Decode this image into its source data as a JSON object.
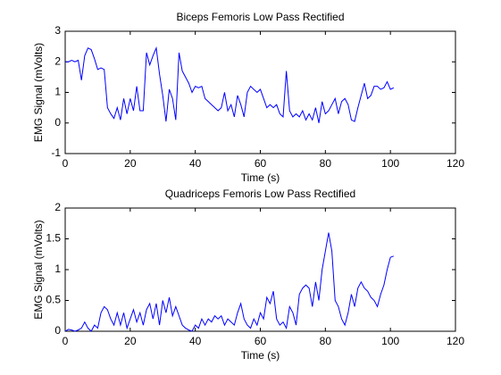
{
  "chart_data": [
    {
      "type": "line",
      "title": "Biceps Femoris Low Pass Rectified",
      "xlabel": "Time (s)",
      "ylabel": "EMG Signal (mVolts)",
      "color": "#0000ff",
      "x": [
        0,
        1,
        2,
        3,
        4,
        5,
        6,
        7,
        8,
        9,
        10,
        11,
        12,
        13,
        14,
        15,
        16,
        17,
        18,
        19,
        20,
        21,
        22,
        23,
        24,
        25,
        26,
        27,
        28,
        29,
        30,
        31,
        32,
        33,
        34,
        35,
        36,
        37,
        38,
        39,
        40,
        41,
        42,
        43,
        44,
        45,
        46,
        47,
        48,
        49,
        50,
        51,
        52,
        53,
        54,
        55,
        56,
        57,
        58,
        59,
        60,
        61,
        62,
        63,
        64,
        65,
        66,
        67,
        68,
        69,
        70,
        71,
        72,
        73,
        74,
        75,
        76,
        77,
        78,
        79,
        80,
        81,
        82,
        83,
        84,
        85,
        86,
        87,
        88,
        89,
        90,
        91,
        92,
        93,
        94,
        95,
        96,
        97,
        98,
        99,
        100,
        101
      ],
      "values": [
        2.0,
        2.0,
        2.05,
        2.0,
        2.05,
        1.4,
        2.2,
        2.45,
        2.4,
        2.1,
        1.75,
        1.8,
        1.75,
        0.5,
        0.3,
        0.15,
        0.5,
        0.1,
        0.8,
        0.3,
        0.8,
        0.4,
        1.2,
        0.4,
        0.4,
        2.3,
        1.9,
        2.2,
        2.45,
        1.6,
        0.9,
        0.05,
        1.1,
        0.8,
        0.1,
        2.3,
        1.7,
        1.5,
        1.3,
        1.0,
        1.2,
        1.15,
        1.2,
        0.8,
        0.7,
        0.6,
        0.5,
        0.4,
        0.5,
        1.0,
        0.4,
        0.6,
        0.2,
        0.9,
        0.6,
        0.2,
        1.0,
        1.2,
        1.1,
        1.0,
        1.1,
        0.8,
        0.5,
        0.6,
        0.5,
        0.6,
        0.3,
        0.2,
        1.7,
        0.4,
        0.2,
        0.3,
        0.2,
        0.4,
        0.1,
        0.3,
        0.1,
        0.5,
        0.0,
        0.7,
        0.3,
        0.4,
        0.6,
        0.8,
        0.3,
        0.7,
        0.8,
        0.6,
        0.1,
        0.05,
        0.5,
        0.9,
        1.3,
        0.8,
        0.9,
        1.2,
        1.2,
        1.1,
        1.15,
        1.35,
        1.1,
        1.15
      ],
      "xlim": [
        0,
        120
      ],
      "xticks": [
        0,
        20,
        40,
        60,
        80,
        100,
        120
      ],
      "ylim": [
        -1,
        3
      ],
      "yticks": [
        -1,
        0,
        1,
        2,
        3
      ]
    },
    {
      "type": "line",
      "title": "Quadriceps Femoris Low Pass Rectified",
      "xlabel": "Time (s)",
      "ylabel": "EMG Signal (mVolts)",
      "color": "#0000ff",
      "x": [
        0,
        1,
        2,
        3,
        4,
        5,
        6,
        7,
        8,
        9,
        10,
        11,
        12,
        13,
        14,
        15,
        16,
        17,
        18,
        19,
        20,
        21,
        22,
        23,
        24,
        25,
        26,
        27,
        28,
        29,
        30,
        31,
        32,
        33,
        34,
        35,
        36,
        37,
        38,
        39,
        40,
        41,
        42,
        43,
        44,
        45,
        46,
        47,
        48,
        49,
        50,
        51,
        52,
        53,
        54,
        55,
        56,
        57,
        58,
        59,
        60,
        61,
        62,
        63,
        64,
        65,
        66,
        67,
        68,
        69,
        70,
        71,
        72,
        73,
        74,
        75,
        76,
        77,
        78,
        79,
        80,
        81,
        82,
        83,
        84,
        85,
        86,
        87,
        88,
        89,
        90,
        91,
        92,
        93,
        94,
        95,
        96,
        97,
        98,
        99,
        100,
        101
      ],
      "values": [
        0.0,
        0.03,
        0.02,
        0.0,
        0.02,
        0.05,
        0.15,
        0.05,
        0.0,
        0.1,
        0.05,
        0.3,
        0.4,
        0.35,
        0.2,
        0.1,
        0.3,
        0.1,
        0.3,
        0.05,
        0.2,
        0.35,
        0.15,
        0.3,
        0.1,
        0.35,
        0.45,
        0.2,
        0.45,
        0.1,
        0.5,
        0.3,
        0.55,
        0.25,
        0.4,
        0.25,
        0.1,
        0.05,
        0.02,
        0.0,
        0.1,
        0.05,
        0.2,
        0.1,
        0.2,
        0.15,
        0.25,
        0.2,
        0.25,
        0.1,
        0.2,
        0.15,
        0.1,
        0.3,
        0.45,
        0.2,
        0.1,
        0.05,
        0.2,
        0.1,
        0.3,
        0.2,
        0.55,
        0.45,
        0.65,
        0.2,
        0.1,
        0.15,
        0.05,
        0.4,
        0.3,
        0.1,
        0.6,
        0.7,
        0.75,
        0.7,
        0.4,
        0.8,
        0.5,
        1.0,
        1.3,
        1.6,
        1.3,
        0.5,
        0.4,
        0.2,
        0.1,
        0.3,
        0.6,
        0.4,
        0.7,
        0.8,
        0.7,
        0.65,
        0.55,
        0.5,
        0.4,
        0.6,
        0.75,
        1.0,
        1.2,
        1.22
      ],
      "xlim": [
        0,
        120
      ],
      "xticks": [
        0,
        20,
        40,
        60,
        80,
        100,
        120
      ],
      "ylim": [
        0,
        2
      ],
      "yticks": [
        0,
        0.5,
        1,
        1.5,
        2
      ]
    }
  ]
}
